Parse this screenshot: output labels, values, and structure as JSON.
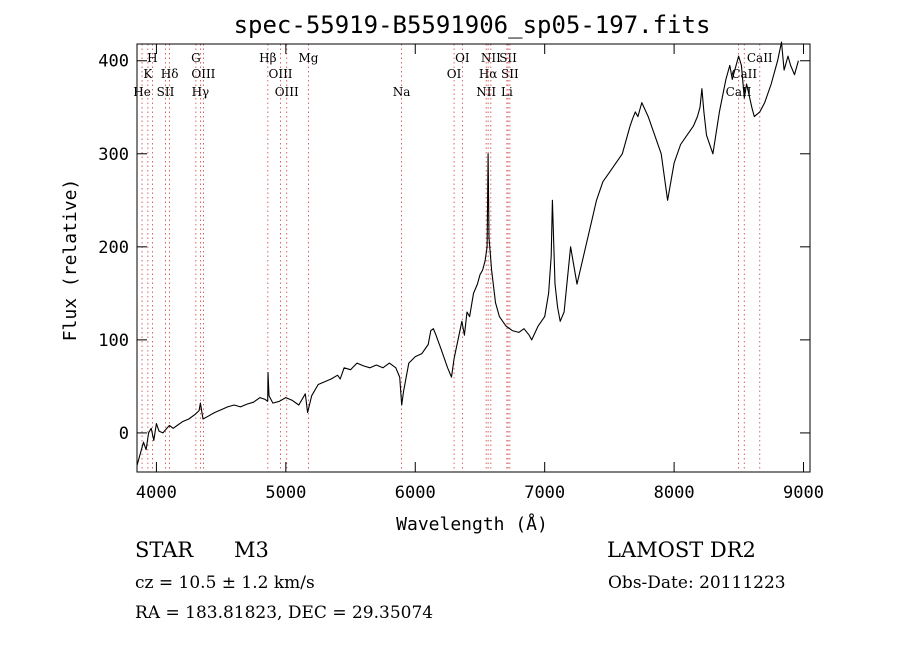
{
  "chart_data": {
    "type": "line",
    "title": "spec-55919-B5591906_sp05-197.fits",
    "xlabel": "Wavelength (Å)",
    "ylabel": "Flux (relative)",
    "xlim": [
      3850,
      9050
    ],
    "ylim": [
      -42,
      418
    ],
    "xticks": [
      4000,
      5000,
      6000,
      7000,
      8000,
      9000
    ],
    "yticks": [
      0,
      100,
      200,
      300,
      400
    ],
    "grid": false,
    "series": [
      {
        "x": [
          3850,
          3880,
          3900,
          3920,
          3940,
          3960,
          3980,
          4000,
          4020,
          4050,
          4080,
          4100,
          4130,
          4160,
          4200,
          4250,
          4300,
          4330,
          4340,
          4360,
          4400,
          4450,
          4500,
          4550,
          4600,
          4650,
          4700,
          4750,
          4800,
          4840,
          4860,
          4862,
          4870,
          4900,
          4950,
          5000,
          5050,
          5100,
          5150,
          5168,
          5200,
          5250,
          5300,
          5350,
          5400,
          5420,
          5450,
          5500,
          5550,
          5600,
          5650,
          5700,
          5750,
          5800,
          5850,
          5880,
          5895,
          5910,
          5950,
          6000,
          6050,
          6100,
          6120,
          6140,
          6160,
          6200,
          6250,
          6280,
          6300,
          6330,
          6360,
          6380,
          6400,
          6420,
          6450,
          6480,
          6500,
          6520,
          6540,
          6555,
          6563,
          6570,
          6590,
          6620,
          6650,
          6700,
          6750,
          6800,
          6840,
          6880,
          6900,
          6950,
          7000,
          7030,
          7050,
          7060,
          7080,
          7100,
          7120,
          7150,
          7200,
          7250,
          7300,
          7350,
          7400,
          7450,
          7500,
          7550,
          7600,
          7620,
          7640,
          7660,
          7680,
          7700,
          7720,
          7750,
          7800,
          7850,
          7900,
          7950,
          8000,
          8050,
          8100,
          8150,
          8180,
          8200,
          8215,
          8230,
          8250,
          8300,
          8350,
          8400,
          8430,
          8450,
          8498,
          8520,
          8542,
          8560,
          8600,
          8620,
          8662,
          8700,
          8750,
          8800,
          8830,
          8850,
          8880,
          8900,
          8930,
          8960
        ],
        "y": [
          -35,
          -20,
          -10,
          -18,
          0,
          5,
          -8,
          10,
          2,
          0,
          5,
          8,
          5,
          8,
          12,
          15,
          20,
          24,
          32,
          15,
          18,
          22,
          25,
          28,
          30,
          28,
          31,
          33,
          38,
          36,
          34,
          65,
          40,
          32,
          34,
          38,
          35,
          30,
          42,
          22,
          40,
          52,
          55,
          58,
          62,
          58,
          70,
          68,
          75,
          72,
          70,
          73,
          70,
          75,
          70,
          60,
          30,
          45,
          75,
          82,
          85,
          95,
          110,
          112,
          105,
          90,
          70,
          60,
          80,
          100,
          120,
          105,
          130,
          125,
          150,
          160,
          170,
          175,
          185,
          200,
          300,
          210,
          175,
          140,
          125,
          115,
          110,
          108,
          112,
          105,
          100,
          115,
          125,
          150,
          190,
          250,
          160,
          135,
          120,
          130,
          200,
          160,
          190,
          220,
          250,
          270,
          280,
          290,
          300,
          310,
          320,
          330,
          338,
          345,
          340,
          355,
          340,
          320,
          300,
          250,
          290,
          310,
          320,
          330,
          340,
          350,
          370,
          345,
          320,
          300,
          345,
          380,
          395,
          380,
          405,
          395,
          360,
          375,
          350,
          340,
          345,
          355,
          375,
          400,
          420,
          390,
          405,
          395,
          385,
          400
        ]
      }
    ],
    "line_markers": [
      {
        "label": "H",
        "x": 3969,
        "row": 1
      },
      {
        "label": "K",
        "x": 3934,
        "row": 2
      },
      {
        "label": "He",
        "x": 3889,
        "row": 3
      },
      {
        "label": "Hδ",
        "x": 4102,
        "row": 2
      },
      {
        "label": "SII",
        "x": 4070,
        "row": 3
      },
      {
        "label": "G",
        "x": 4305,
        "row": 1
      },
      {
        "label": "OIII",
        "x": 4363,
        "row": 2
      },
      {
        "label": "Hγ",
        "x": 4340,
        "row": 3
      },
      {
        "label": "Hβ",
        "x": 4861,
        "row": 1
      },
      {
        "label": "OIII",
        "x": 4959,
        "row": 2
      },
      {
        "label": "OIII",
        "x": 5007,
        "row": 3
      },
      {
        "label": "Mg",
        "x": 5175,
        "row": 1
      },
      {
        "label": "Na",
        "x": 5894,
        "row": 3
      },
      {
        "label": "OI",
        "x": 6364,
        "row": 1
      },
      {
        "label": "OI",
        "x": 6300,
        "row": 2
      },
      {
        "label": "NII",
        "x": 6584,
        "row": 1
      },
      {
        "label": "SII",
        "x": 6717,
        "row": 1
      },
      {
        "label": "Hα",
        "x": 6563,
        "row": 2
      },
      {
        "label": "SII",
        "x": 6731,
        "row": 2
      },
      {
        "label": "NII",
        "x": 6548,
        "row": 3
      },
      {
        "label": "Li",
        "x": 6708,
        "row": 3
      },
      {
        "label": "CaII",
        "x": 8662,
        "row": 1
      },
      {
        "label": "CaII",
        "x": 8542,
        "row": 2
      },
      {
        "label": "CaII",
        "x": 8498,
        "row": 3
      }
    ]
  },
  "info": {
    "object_class": "STAR",
    "subclass": "M3",
    "survey": "LAMOST DR2",
    "redshift": "cz = 10.5 ± 1.2 km/s",
    "obs_date": "Obs-Date: 20111223",
    "coords": "RA = 183.81823, DEC =  29.35074"
  },
  "colors": {
    "line_marker": "#d04040",
    "spectrum": "#000000"
  }
}
